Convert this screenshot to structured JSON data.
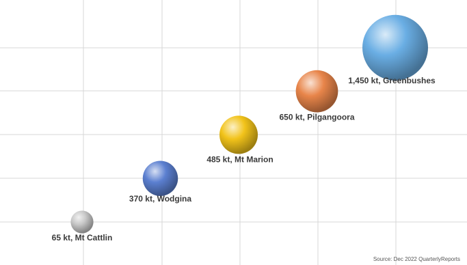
{
  "chart_data": {
    "type": "scatter",
    "title": "",
    "xlabel": "",
    "ylabel": "",
    "grid": true,
    "units": "kt",
    "points": [
      {
        "label": "65 kt, Mt Cattlin",
        "mine": "Mt Cattlin",
        "value": 65,
        "color": "#c8c8c8"
      },
      {
        "label": "370 kt, Wodgina",
        "mine": "Wodgina",
        "value": 370,
        "color": "#5b7fd0"
      },
      {
        "label": "485 kt, Mt Marion",
        "mine": "Mt Marion",
        "value": 485,
        "color": "#f2c31a"
      },
      {
        "label": "650 kt, Pilgangoora",
        "mine": "Pilgangoora",
        "value": 650,
        "color": "#e8854a"
      },
      {
        "label": "1,450 kt, Greenbushes",
        "mine": "Greenbushes",
        "value": 1450,
        "color": "#6aaee4"
      }
    ]
  },
  "source": "Source: Dec 2022 QuarterlyReports"
}
